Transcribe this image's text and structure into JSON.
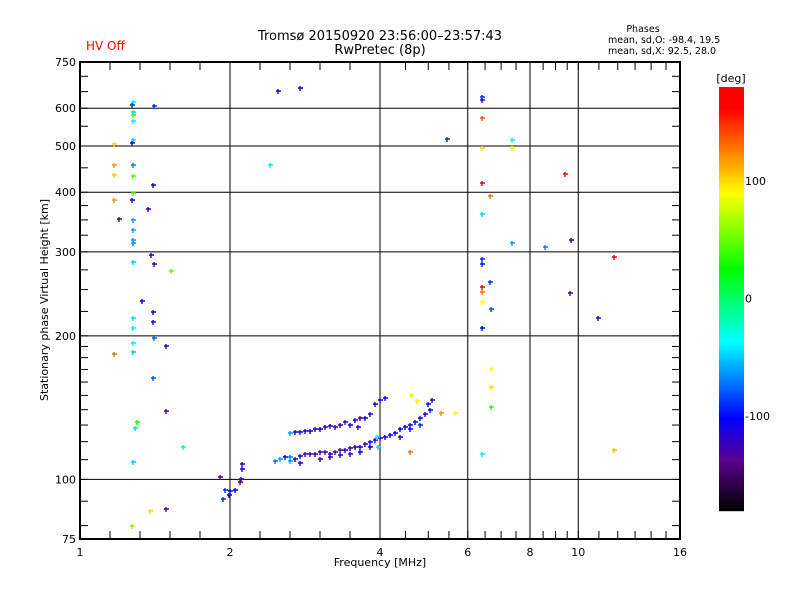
{
  "header": {
    "hv_status": "HV Off",
    "title_line1": "Tromsø 20150920 23:56:00–23:57:43",
    "title_line2": "RwPretec (8p)",
    "stats_title": "Phases",
    "stats_o": "mean, sd,O: -98.4, 19.5",
    "stats_x": "mean, sd,X:  92.5, 28.0",
    "hv_color": "#ff0000"
  },
  "chart_data": {
    "type": "scatter",
    "title": "Tromsø 20150920 23:56:00–23:57:43",
    "subtitle": "RwPretec (8p)",
    "xlabel": "Frequency [MHz]",
    "ylabel": "Stationary phase Virtual Height [km]",
    "xscale": "log2",
    "yscale": "log10",
    "xlim": [
      1,
      16
    ],
    "ylim": [
      75,
      750
    ],
    "xticks": [
      1,
      2,
      4,
      6,
      8,
      10,
      16
    ],
    "xtick_labels": [
      "1",
      "2",
      "4",
      "6",
      "8",
      "10",
      "16"
    ],
    "xgrid": [
      2,
      4,
      6,
      8,
      10
    ],
    "yticks": [
      75,
      100,
      200,
      300,
      400,
      500,
      600,
      750
    ],
    "ytick_labels": [
      "75",
      "100",
      "200",
      "300",
      "400",
      "500",
      "600",
      "750"
    ],
    "ygrid": [
      100,
      200,
      300,
      400,
      500,
      600
    ],
    "grid": true,
    "colorbar": {
      "label": "[deg]",
      "range": [
        -180,
        180
      ],
      "ticks": [
        100,
        0,
        -100
      ],
      "tick_labels": [
        "100",
        "0",
        "-100"
      ],
      "placement": "right"
    },
    "point_format": [
      "frequency_MHz",
      "height_km",
      "phase_deg"
    ],
    "points": [
      [
        1.28,
        618,
        -40
      ],
      [
        1.27,
        609,
        -90
      ],
      [
        1.41,
        606,
        -90
      ],
      [
        1.28,
        590,
        -45
      ],
      [
        1.28,
        581,
        40
      ],
      [
        1.28,
        565,
        -40
      ],
      [
        1.28,
        514,
        -45
      ],
      [
        1.27,
        507,
        -120
      ],
      [
        1.17,
        505,
        100
      ],
      [
        1.17,
        456,
        120
      ],
      [
        1.28,
        456,
        -70
      ],
      [
        1.17,
        435,
        105
      ],
      [
        1.28,
        432,
        45
      ],
      [
        1.4,
        415,
        -100
      ],
      [
        1.28,
        398,
        50
      ],
      [
        1.17,
        386,
        120
      ],
      [
        1.27,
        386,
        -110
      ],
      [
        1.37,
        368,
        -125
      ],
      [
        1.2,
        352,
        -130
      ],
      [
        1.28,
        350,
        -60
      ],
      [
        1.28,
        334,
        -60
      ],
      [
        1.28,
        318,
        -60
      ],
      [
        1.28,
        313,
        -65
      ],
      [
        1.39,
        295,
        -120
      ],
      [
        1.41,
        283,
        -125
      ],
      [
        1.28,
        286,
        -50
      ],
      [
        1.52,
        274,
        50
      ],
      [
        1.33,
        237,
        -100
      ],
      [
        1.28,
        218,
        -45
      ],
      [
        1.4,
        224,
        -110
      ],
      [
        1.4,
        214,
        -120
      ],
      [
        1.28,
        208,
        -40
      ],
      [
        1.17,
        183,
        130
      ],
      [
        1.28,
        193,
        -40
      ],
      [
        1.41,
        198,
        -80
      ],
      [
        1.49,
        190,
        -125
      ],
      [
        1.28,
        185,
        -50
      ],
      [
        1.4,
        163,
        -80
      ],
      [
        1.49,
        139,
        -130
      ],
      [
        1.3,
        132,
        30
      ],
      [
        1.29,
        128,
        -45
      ],
      [
        1.61,
        117,
        -20
      ],
      [
        1.28,
        109,
        -50
      ],
      [
        1.49,
        86.5,
        -130
      ],
      [
        1.38,
        86,
        100
      ],
      [
        1.27,
        80,
        60
      ],
      [
        2.41,
        456,
        -40
      ],
      [
        2.5,
        652,
        -110
      ],
      [
        2.76,
        660,
        -110
      ],
      [
        5.45,
        518,
        -90
      ],
      [
        6.41,
        632,
        -90
      ],
      [
        6.41,
        623,
        -120
      ],
      [
        6.41,
        571,
        140
      ],
      [
        6.41,
        496,
        100
      ],
      [
        6.41,
        418,
        165
      ],
      [
        6.66,
        392,
        130
      ],
      [
        6.41,
        360,
        -45
      ],
      [
        6.41,
        290,
        -90
      ],
      [
        6.41,
        283,
        -95
      ],
      [
        6.41,
        253,
        160
      ],
      [
        6.41,
        247,
        130
      ],
      [
        6.41,
        236,
        90
      ],
      [
        6.66,
        259,
        -90
      ],
      [
        6.68,
        228,
        -80
      ],
      [
        6.41,
        208,
        -100
      ],
      [
        6.68,
        170,
        90
      ],
      [
        6.68,
        156,
        100
      ],
      [
        6.68,
        142,
        40
      ],
      [
        6.41,
        113,
        -40
      ],
      [
        7.36,
        514,
        -30
      ],
      [
        7.36,
        496,
        90
      ],
      [
        7.36,
        313,
        -60
      ],
      [
        8.57,
        307,
        -70
      ],
      [
        9.4,
        437,
        160
      ],
      [
        9.66,
        318,
        -130
      ],
      [
        9.62,
        246,
        -130
      ],
      [
        10.95,
        218,
        -120
      ],
      [
        11.8,
        293,
        165
      ],
      [
        11.8,
        115,
        110
      ],
      [
        1.91,
        101,
        -130
      ],
      [
        1.95,
        95,
        -90
      ],
      [
        2.0,
        94.4,
        -100
      ],
      [
        2.05,
        95,
        -110
      ],
      [
        1.99,
        92.6,
        -100
      ],
      [
        2.1,
        100,
        -120
      ],
      [
        2.11,
        107.5,
        -120
      ],
      [
        2.11,
        105,
        -110
      ],
      [
        2.09,
        98.6,
        -140
      ],
      [
        1.94,
        90.8,
        -90
      ],
      [
        2.462,
        109.1,
        -70
      ],
      [
        2.52,
        110.1,
        -60
      ],
      [
        2.579,
        111.2,
        -100
      ],
      [
        2.639,
        111.2,
        -70
      ],
      [
        2.701,
        110.1,
        -120
      ],
      [
        2.764,
        111.7,
        -110
      ],
      [
        2.828,
        112.8,
        -130
      ],
      [
        2.894,
        112.8,
        -120
      ],
      [
        2.962,
        113.3,
        -125
      ],
      [
        3.031,
        114.4,
        -120
      ],
      [
        3.102,
        114.4,
        -130
      ],
      [
        3.175,
        112.8,
        -110
      ],
      [
        3.249,
        114.4,
        -125
      ],
      [
        3.325,
        115.0,
        -120
      ],
      [
        3.403,
        115.5,
        -110
      ],
      [
        3.482,
        116.1,
        -125
      ],
      [
        3.564,
        117.2,
        -120
      ],
      [
        3.647,
        116.7,
        -115
      ],
      [
        3.732,
        118.4,
        -120
      ],
      [
        3.819,
        119.5,
        -110
      ],
      [
        3.908,
        121.2,
        -115
      ],
      [
        4.0,
        122.4,
        -110
      ],
      [
        2.639,
        109.1,
        -60
      ],
      [
        2.764,
        108.5,
        -110
      ],
      [
        3.031,
        110.1,
        -120
      ],
      [
        3.175,
        111.2,
        -140
      ],
      [
        3.325,
        112.3,
        -125
      ],
      [
        3.482,
        112.8,
        -120
      ],
      [
        3.647,
        114.4,
        -100
      ],
      [
        3.819,
        116.7,
        -110
      ],
      [
        2.639,
        125.4,
        -60
      ],
      [
        2.701,
        126.0,
        -110
      ],
      [
        2.764,
        126.0,
        -100
      ],
      [
        2.828,
        126.6,
        -120
      ],
      [
        2.894,
        126.6,
        -110
      ],
      [
        2.962,
        127.3,
        -120
      ],
      [
        3.031,
        127.3,
        -110
      ],
      [
        3.102,
        128.5,
        -125
      ],
      [
        3.175,
        129.1,
        -120
      ],
      [
        3.249,
        128.5,
        -115
      ],
      [
        3.325,
        130.3,
        -125
      ],
      [
        3.403,
        132.2,
        -120
      ],
      [
        3.482,
        130.3,
        -110
      ],
      [
        3.564,
        133.5,
        -120
      ],
      [
        3.647,
        134.8,
        -125
      ],
      [
        3.61,
        128.5,
        -115
      ],
      [
        3.732,
        134.8,
        -110
      ],
      [
        3.819,
        136.8,
        -120
      ],
      [
        3.908,
        143.6,
        -110
      ],
      [
        4.0,
        147.0,
        -115
      ],
      [
        4.093,
        148.4,
        -105
      ],
      [
        4.093,
        123.0,
        -105
      ],
      [
        4.19,
        124.2,
        -100
      ],
      [
        4.287,
        125.4,
        -110
      ],
      [
        4.387,
        127.3,
        -100
      ],
      [
        4.49,
        128.5,
        -105
      ],
      [
        4.595,
        130.3,
        -110
      ],
      [
        4.702,
        132.2,
        -95
      ],
      [
        4.812,
        134.8,
        -100
      ],
      [
        4.925,
        136.8,
        -110
      ],
      [
        5.04,
        140.1,
        -100
      ],
      [
        5.09,
        147.0,
        -120
      ],
      [
        4.99,
        143.6,
        -110
      ],
      [
        4.812,
        130.3,
        -90
      ],
      [
        4.595,
        127.3,
        -100
      ],
      [
        4.387,
        123.0,
        -110
      ],
      [
        4.62,
        150.6,
        85
      ],
      [
        4.75,
        146.0,
        95
      ],
      [
        5.3,
        138.0,
        120
      ],
      [
        5.66,
        138.0,
        90
      ],
      [
        4.6,
        114.0,
        130
      ],
      [
        3.95,
        123.0,
        -40
      ],
      [
        3.97,
        117.2,
        -45
      ]
    ]
  }
}
